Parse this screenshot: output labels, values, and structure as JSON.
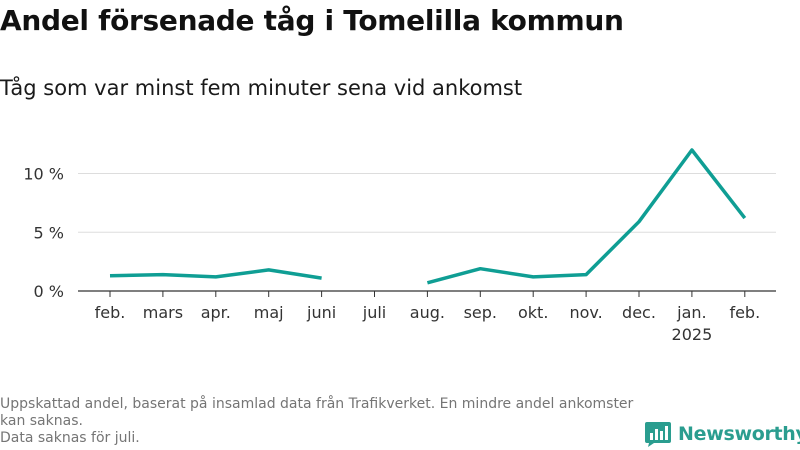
{
  "header": {
    "title": "Andel försenade tåg i Tomelilla kommun",
    "subtitle": "Tåg som var minst fem minuter sena vid ankomst"
  },
  "chart_data": {
    "type": "line",
    "categories": [
      "feb.",
      "mars",
      "apr.",
      "maj",
      "juni",
      "juli",
      "aug.",
      "sep.",
      "okt.",
      "nov.",
      "dec.",
      "jan.",
      "feb."
    ],
    "category_sublabels": [
      "",
      "",
      "",
      "",
      "",
      "",
      "",
      "",
      "",
      "",
      "",
      "2025",
      ""
    ],
    "series": [
      {
        "values": [
          1.3,
          1.4,
          1.2,
          1.8,
          1.1,
          null,
          0.7,
          1.9,
          1.2,
          1.4,
          5.9,
          12.0,
          6.2
        ]
      }
    ],
    "y_ticks": [
      0,
      5,
      10
    ],
    "y_tick_labels": [
      "0 %",
      "5 %",
      "10 %"
    ],
    "ylim": [
      0,
      12
    ],
    "grid": true,
    "colors": {
      "line": "#0f9e94",
      "grid": "#dddddd",
      "axis": "#333333"
    }
  },
  "footer": {
    "note_line1": "Uppskattad andel, baserat på insamlad data från Trafikverket. En mindre andel ankomster kan saknas.",
    "note_line2": "Data saknas för juli.",
    "brand": "Newsworthy",
    "brand_icon": "bar-chart-bubble-icon",
    "brand_color": "#2a9d8f"
  }
}
